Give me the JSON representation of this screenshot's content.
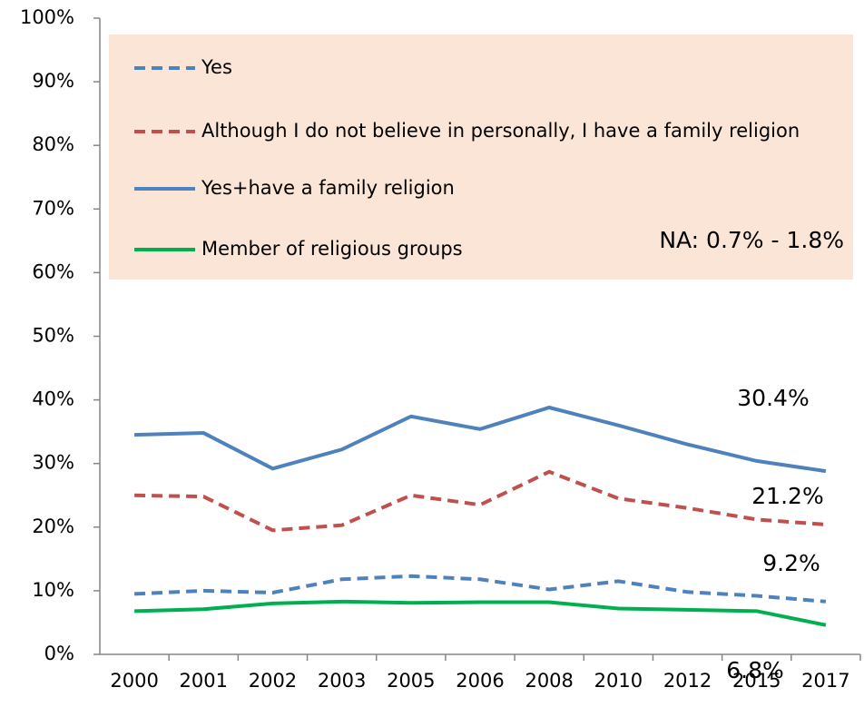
{
  "chart_data": {
    "type": "line",
    "categories": [
      "2000",
      "2001",
      "2002",
      "2003",
      "2005",
      "2006",
      "2008",
      "2010",
      "2012",
      "2015",
      "2017"
    ],
    "series": [
      {
        "name": "Yes",
        "color": "#4f81bd",
        "dash": true,
        "values": [
          9.5,
          10,
          9.7,
          11.8,
          12.3,
          11.8,
          10.2,
          11.5,
          9.8,
          9.2,
          8.3
        ]
      },
      {
        "name": "Although I do not believe in personally, I have a family religion",
        "color": "#c0504d",
        "dash": true,
        "values": [
          25,
          24.8,
          19.5,
          20.3,
          25,
          23.5,
          28.7,
          24.5,
          23,
          21.2,
          20.4
        ]
      },
      {
        "name": "Yes+have a family religion",
        "color": "#4f81bd",
        "dash": false,
        "values": [
          34.5,
          34.8,
          29.2,
          32.2,
          37.4,
          35.4,
          38.8,
          36,
          33,
          30.4,
          28.8
        ]
      },
      {
        "name": "Member of religious groups",
        "color": "#00b050",
        "dash": false,
        "values": [
          6.8,
          7.1,
          8,
          8.3,
          8.1,
          8.2,
          8.2,
          7.2,
          7,
          6.8,
          4.6
        ]
      }
    ],
    "annotations": [
      "NA: 0.7% - 1.8%",
      "30.4%",
      "21.2%",
      "9.2%",
      "6.8%"
    ],
    "ylim": [
      0,
      100
    ],
    "yticks": [
      {
        "value": 0,
        "label": "0%"
      },
      {
        "value": 10,
        "label": "10%"
      },
      {
        "value": 20,
        "label": "20%"
      },
      {
        "value": 30,
        "label": "30%"
      },
      {
        "value": 40,
        "label": "40%"
      },
      {
        "value": 50,
        "label": "50%"
      },
      {
        "value": 60,
        "label": "60%"
      },
      {
        "value": 70,
        "label": "70%"
      },
      {
        "value": 80,
        "label": "80%"
      },
      {
        "value": 90,
        "label": "90%"
      },
      {
        "value": 100,
        "label": "100%"
      }
    ],
    "legend_background": "#fbe5d6"
  }
}
